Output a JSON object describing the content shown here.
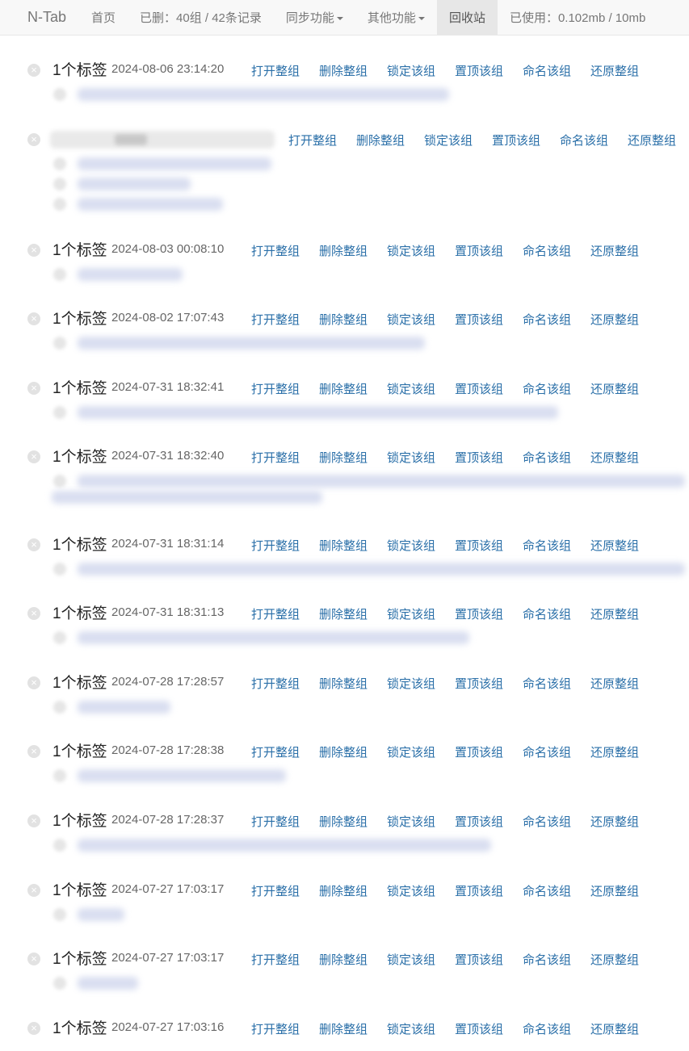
{
  "nav": {
    "brand": "N-Tab",
    "home": "首页",
    "deleted_status": "已删：40组 / 42条记录",
    "sync": "同步功能",
    "other": "其他功能",
    "recycle": "回收站",
    "usage": "已使用：0.102mb / 10mb"
  },
  "actions": [
    "打开整组",
    "删除整组",
    "锁定该组",
    "置顶该组",
    "命名该组",
    "还原整组"
  ],
  "icons": {
    "delete": "close-circle-icon",
    "favicon": "favicon-icon"
  },
  "groups": [
    {
      "count": "1个标签",
      "time": "2024-08-06 23:14:20"
    },
    {
      "count": "",
      "time": ""
    },
    {
      "count": "1个标签",
      "time": "2024-08-03 00:08:10"
    },
    {
      "count": "1个标签",
      "time": "2024-08-02 17:07:43"
    },
    {
      "count": "1个标签",
      "time": "2024-07-31 18:32:41"
    },
    {
      "count": "1个标签",
      "time": "2024-07-31 18:32:40"
    },
    {
      "count": "1个标签",
      "time": "2024-07-31 18:31:14"
    },
    {
      "count": "1个标签",
      "time": "2024-07-31 18:31:13"
    },
    {
      "count": "1个标签",
      "time": "2024-07-28 17:28:57"
    },
    {
      "count": "1个标签",
      "time": "2024-07-28 17:28:38"
    },
    {
      "count": "1个标签",
      "time": "2024-07-28 17:28:37"
    },
    {
      "count": "1个标签",
      "time": "2024-07-27 17:03:17"
    },
    {
      "count": "1个标签",
      "time": "2024-07-27 17:03:17"
    },
    {
      "count": "1个标签",
      "time": "2024-07-27 17:03:16"
    }
  ]
}
